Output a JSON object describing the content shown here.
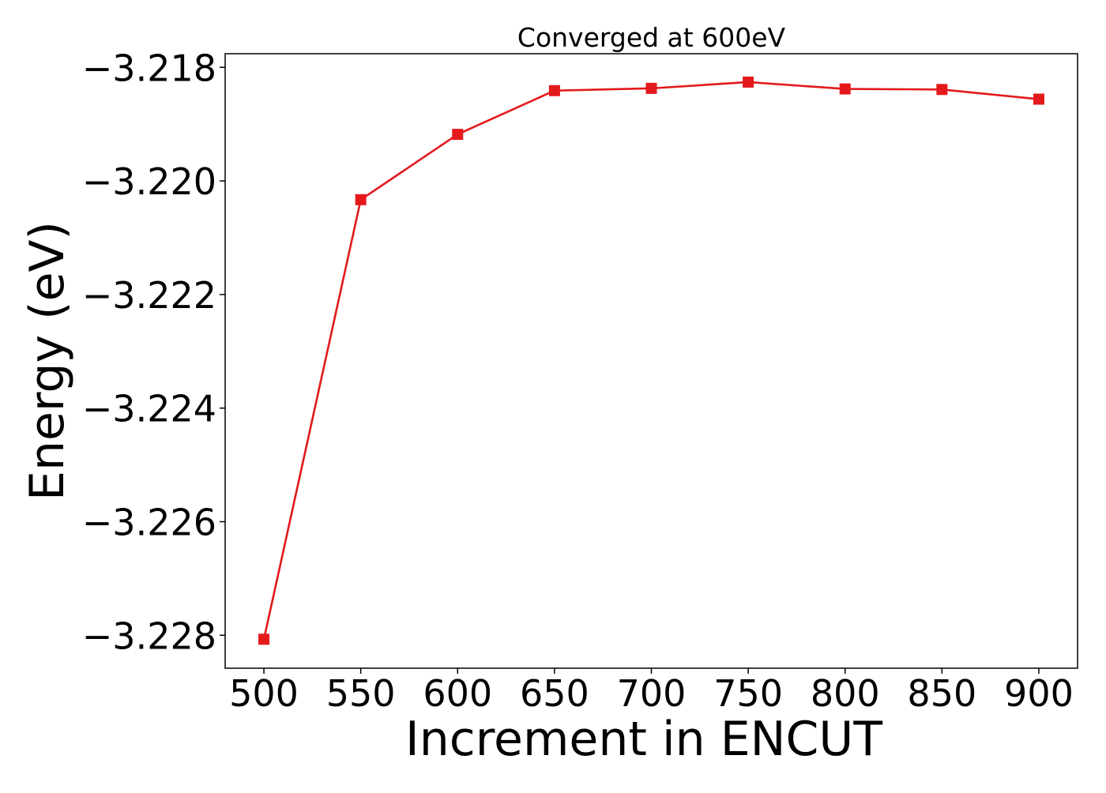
{
  "chart_data": {
    "type": "line",
    "title": "Converged at 600eV",
    "xlabel": "Increment in ENCUT",
    "ylabel": "Energy (eV)",
    "x": [
      500,
      550,
      600,
      650,
      700,
      750,
      800,
      850,
      900
    ],
    "series": [
      {
        "name": "",
        "color": "#e3191c",
        "marker": "square",
        "values": [
          -3.22807,
          -3.22033,
          -3.21918,
          -3.21841,
          -3.21837,
          -3.21826,
          -3.21838,
          -3.21839,
          -3.21856
        ]
      }
    ],
    "xlim": [
      480,
      920
    ],
    "ylim": [
      -3.22858,
      -3.21776
    ],
    "xticks": [
      500,
      550,
      600,
      650,
      700,
      750,
      800,
      850,
      900
    ],
    "xtick_labels": [
      "500",
      "550",
      "600",
      "650",
      "700",
      "750",
      "800",
      "850",
      "900"
    ],
    "yticks": [
      -3.228,
      -3.226,
      -3.224,
      -3.222,
      -3.22,
      -3.218
    ],
    "ytick_labels": [
      "−3.228",
      "−3.226",
      "−3.224",
      "−3.222",
      "−3.220",
      "−3.218"
    ],
    "grid": false,
    "legend": "none"
  }
}
